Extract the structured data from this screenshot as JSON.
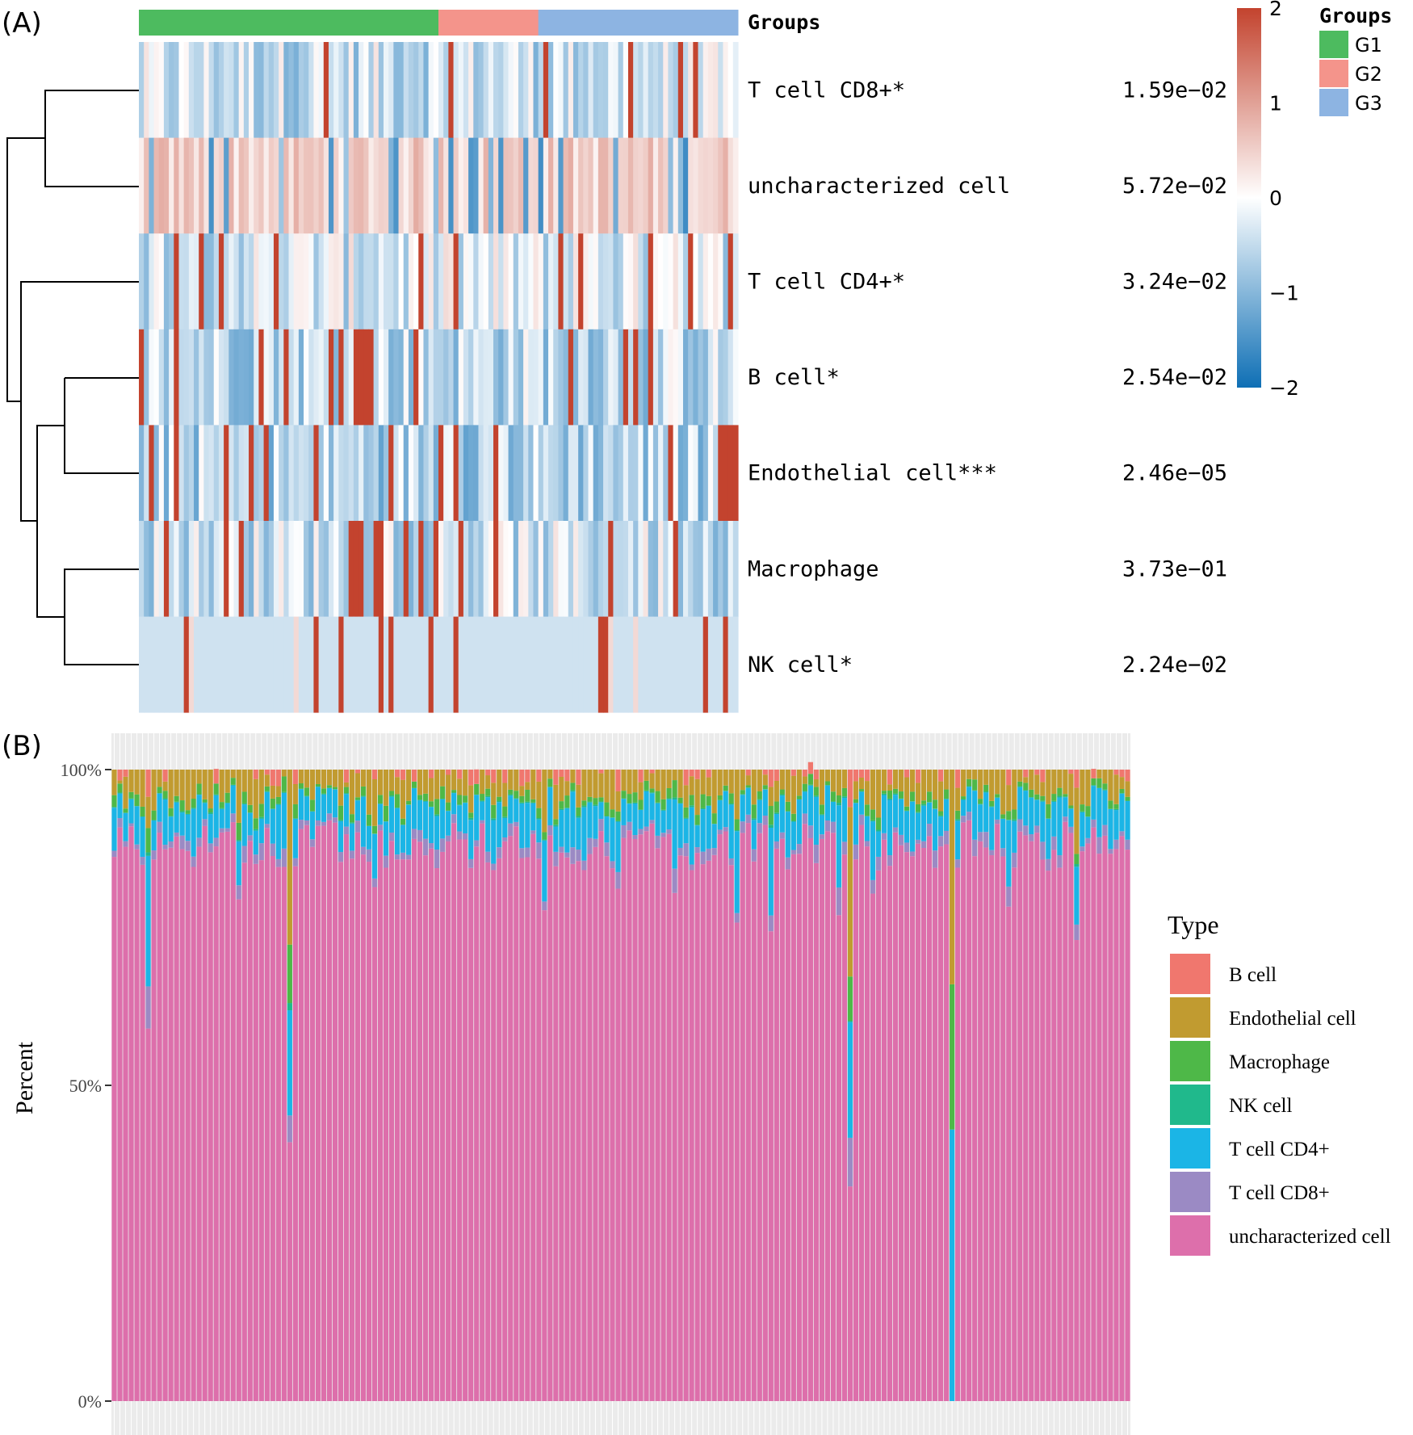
{
  "panel_a_label": "(A)",
  "panel_b_label": "(B)",
  "chart_data": [
    {
      "type": "heatmap",
      "title": "",
      "annotation_title": "Groups",
      "groups": [
        {
          "name": "G1",
          "color": "#4DBB5F",
          "count": 60
        },
        {
          "name": "G2",
          "color": "#F4948B",
          "count": 20
        },
        {
          "name": "G3",
          "color": "#8DB4E2",
          "count": 40
        }
      ],
      "rows": [
        {
          "label": "T cell CD8+*",
          "pvalue": "1.59e−02"
        },
        {
          "label": "uncharacterized cell",
          "pvalue": "5.72e−02"
        },
        {
          "label": "T cell CD4+*",
          "pvalue": "3.24e−02"
        },
        {
          "label": "B cell*",
          "pvalue": "2.54e−02"
        },
        {
          "label": "Endothelial cell***",
          "pvalue": "2.46e−05"
        },
        {
          "label": "Macrophage",
          "pvalue": "3.73e−01"
        },
        {
          "label": "NK cell*",
          "pvalue": "2.24e−02"
        }
      ],
      "color_scale": {
        "min": -2,
        "max": 2,
        "low_color": "#0E6FB5",
        "mid_color": "#FFFFFF",
        "high_color": "#C3432E",
        "ticks": [
          {
            "value": 2,
            "label": "2"
          },
          {
            "value": 1,
            "label": "1"
          },
          {
            "value": 0,
            "label": "0"
          },
          {
            "value": -1,
            "label": "−1"
          },
          {
            "value": -2,
            "label": "−2"
          }
        ]
      },
      "dendrogram": "rows clustered: (CD8+, uncharacterized), (CD4+, ((B cell, Endothelial), (Macrophage, NK)))",
      "cell_values": "approximate z-scores per sample, 120 samples"
    },
    {
      "type": "bar",
      "stacked": true,
      "percent": true,
      "ylabel": "Percent",
      "xlabel": "",
      "ylim": [
        0,
        100
      ],
      "yticks": [
        "0%",
        "50%",
        "100%"
      ],
      "legend_title": "Type",
      "legend_position": "right",
      "series": [
        {
          "name": "uncharacterized cell",
          "color": "#DD6FAB"
        },
        {
          "name": "T cell CD8+",
          "color": "#9B8AC4"
        },
        {
          "name": "T cell CD4+",
          "color": "#1BB5E6"
        },
        {
          "name": "NK cell",
          "color": "#20B98C"
        },
        {
          "name": "Macrophage",
          "color": "#4EB848"
        },
        {
          "name": "Endothelial cell",
          "color": "#C19B30"
        },
        {
          "name": "B cell",
          "color": "#F0776E"
        }
      ],
      "legend_order": [
        "B cell",
        "Endothelial cell",
        "Macrophage",
        "NK cell",
        "T cell CD4+",
        "T cell CD8+",
        "uncharacterized cell"
      ],
      "n_samples": 180,
      "notable_samples": [
        {
          "index": 6,
          "uncharacterized": 59
        },
        {
          "index": 31,
          "uncharacterized": 41
        },
        {
          "index": 130,
          "uncharacterized": 34
        },
        {
          "index": 148,
          "uncharacterized": 0
        }
      ]
    }
  ]
}
